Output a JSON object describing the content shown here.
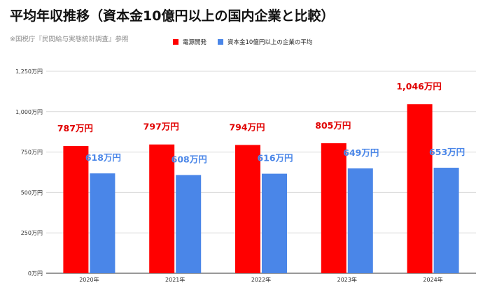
{
  "title": "平均年収推移（資本金10億円以上の国内企業と比較）",
  "note": "※国税庁『民間給与実態統計調査』参照",
  "colors": {
    "series_red": "#ff0000",
    "series_blue": "#4a86e8",
    "grid": "#d9d9d9",
    "label_red": "#e00000"
  },
  "chart_data": {
    "type": "bar",
    "categories": [
      "2020年",
      "2021年",
      "2022年",
      "2023年",
      "2024年"
    ],
    "series": [
      {
        "name": "電源開発",
        "values": [
          787,
          797,
          794,
          805,
          1046
        ],
        "labels": [
          "787万円",
          "797万円",
          "794万円",
          "805万円",
          "1,046万円"
        ]
      },
      {
        "name": "資本金10億円以上の企業の平均",
        "values": [
          618,
          608,
          616,
          649,
          653
        ],
        "labels": [
          "618万円",
          "608万円",
          "616万円",
          "649万円",
          "653万円"
        ]
      }
    ],
    "yticks": [
      0,
      250,
      500,
      750,
      1000,
      1250
    ],
    "ytick_labels": [
      "0万円",
      "250万円",
      "500万円",
      "750万円",
      "1,000万円",
      "1,250万円"
    ],
    "ylim": [
      0,
      1250
    ],
    "grid": true,
    "legend_position": "top"
  }
}
